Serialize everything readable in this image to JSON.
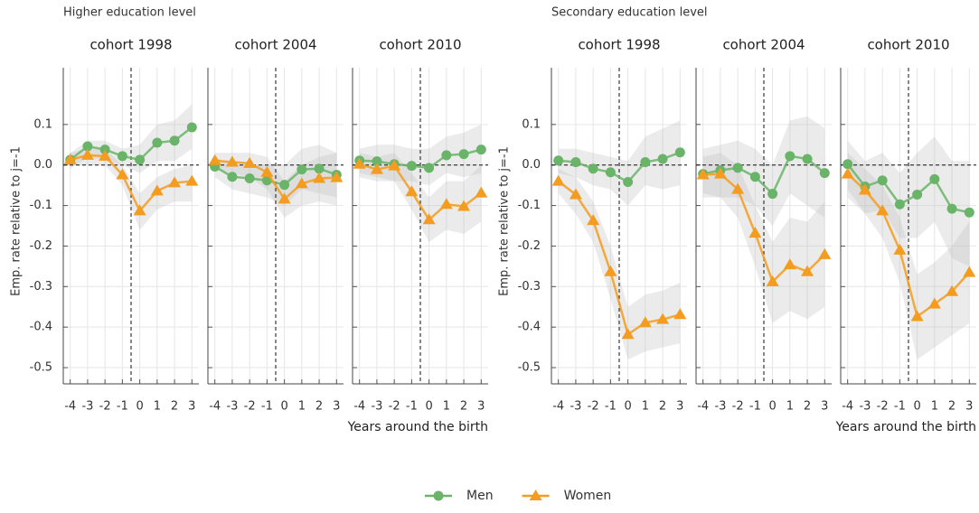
{
  "group_titles": [
    "Higher education level",
    "Secondary education level"
  ],
  "legend": "bottom",
  "chart_data": [
    {
      "type": "line",
      "title": "cohort 1998",
      "y_label": "Emp. rate relative to j=-1",
      "x": [
        -4,
        -3,
        -2,
        -1,
        0,
        1,
        2,
        3
      ],
      "xlim": [
        -4.4,
        3.4
      ],
      "xticks": [
        -4,
        -3,
        -2,
        -1,
        0,
        1,
        2,
        3
      ],
      "ylim": [
        -0.54,
        0.24
      ],
      "yticks": [
        0.1,
        {
          "value": 0,
          "label": "0.0"
        },
        -0.1,
        -0.2,
        -0.3,
        -0.4,
        -0.5
      ],
      "grid": true,
      "reference_lines": {
        "x": -0.5,
        "y": 0
      },
      "series": [
        {
          "name": "Men",
          "color": "#6ab46a",
          "marker": "circle",
          "values": [
            0.013,
            0.046,
            0.038,
            0.022,
            0.013,
            0.055,
            0.06,
            0.093
          ],
          "ci_lower": [
            -0.01,
            0.02,
            0.01,
            0.0,
            -0.02,
            0.01,
            0.01,
            0.04
          ],
          "ci_upper": [
            0.03,
            0.06,
            0.06,
            0.04,
            0.05,
            0.1,
            0.11,
            0.15
          ]
        },
        {
          "name": "Women",
          "color": "#f39c1f",
          "marker": "triangle",
          "values": [
            0.013,
            0.024,
            0.022,
            -0.024,
            -0.113,
            -0.064,
            -0.044,
            -0.04
          ],
          "ci_lower": [
            0.0,
            0.0,
            0.0,
            -0.05,
            -0.16,
            -0.11,
            -0.09,
            -0.09
          ],
          "ci_upper": [
            0.03,
            0.04,
            0.04,
            0.0,
            -0.07,
            -0.03,
            -0.01,
            0.0
          ]
        }
      ]
    },
    {
      "type": "line",
      "title": "cohort 2004",
      "x": [
        -4,
        -3,
        -2,
        -1,
        0,
        1,
        2,
        3
      ],
      "xlim": [
        -4.4,
        3.4
      ],
      "xticks": [
        -4,
        -3,
        -2,
        -1,
        0,
        1,
        2,
        3
      ],
      "ylim": [
        -0.54,
        0.24
      ],
      "yticks": [
        0.1,
        0,
        -0.1,
        -0.2,
        -0.3,
        -0.4,
        -0.5
      ],
      "grid": true,
      "reference_lines": {
        "x": -0.5,
        "y": 0
      },
      "series": [
        {
          "name": "Men",
          "color": "#6ab46a",
          "marker": "circle",
          "values": [
            -0.004,
            -0.029,
            -0.033,
            -0.038,
            -0.049,
            -0.011,
            -0.009,
            -0.024
          ],
          "ci_lower": [
            -0.03,
            -0.06,
            -0.07,
            -0.08,
            -0.1,
            -0.06,
            -0.07,
            -0.08
          ],
          "ci_upper": [
            0.02,
            0.0,
            0.0,
            0.0,
            0.0,
            0.04,
            0.05,
            0.03
          ]
        },
        {
          "name": "Women",
          "color": "#f39c1f",
          "marker": "triangle",
          "values": [
            0.011,
            0.007,
            0.004,
            -0.018,
            -0.084,
            -0.046,
            -0.033,
            -0.031
          ],
          "ci_lower": [
            -0.01,
            -0.02,
            -0.03,
            -0.06,
            -0.13,
            -0.1,
            -0.09,
            -0.1
          ],
          "ci_upper": [
            0.03,
            0.03,
            0.03,
            0.02,
            -0.04,
            0.0,
            0.02,
            0.03
          ]
        }
      ]
    },
    {
      "type": "line",
      "title": "cohort 2010",
      "x_label": "Years around the birth",
      "x": [
        -4,
        -3,
        -2,
        -1,
        0,
        1,
        2,
        3
      ],
      "xlim": [
        -4.4,
        3.4
      ],
      "xticks": [
        -4,
        -3,
        -2,
        -1,
        0,
        1,
        2,
        3
      ],
      "ylim": [
        -0.54,
        0.24
      ],
      "yticks": [
        0.1,
        0,
        -0.1,
        -0.2,
        -0.3,
        -0.4,
        -0.5
      ],
      "grid": true,
      "reference_lines": {
        "x": -0.5,
        "y": 0
      },
      "series": [
        {
          "name": "Men",
          "color": "#6ab46a",
          "marker": "circle",
          "values": [
            0.011,
            0.009,
            0.002,
            -0.002,
            -0.007,
            0.024,
            0.027,
            0.038
          ],
          "ci_lower": [
            -0.02,
            -0.03,
            -0.04,
            -0.04,
            -0.05,
            -0.02,
            -0.03,
            -0.02
          ],
          "ci_upper": [
            0.04,
            0.05,
            0.05,
            0.04,
            0.04,
            0.07,
            0.08,
            0.1
          ]
        },
        {
          "name": "Women",
          "color": "#f39c1f",
          "marker": "triangle",
          "values": [
            0.002,
            -0.011,
            -0.002,
            -0.066,
            -0.135,
            -0.097,
            -0.102,
            -0.069
          ],
          "ci_lower": [
            -0.03,
            -0.04,
            -0.04,
            -0.11,
            -0.19,
            -0.16,
            -0.17,
            -0.14
          ],
          "ci_upper": [
            0.03,
            0.02,
            0.03,
            -0.02,
            -0.08,
            -0.04,
            -0.04,
            0.0
          ]
        }
      ]
    },
    {
      "type": "line",
      "title": "cohort 1998",
      "y_label": "Emp. rate relative to j=-1",
      "x": [
        -4,
        -3,
        -2,
        -1,
        0,
        1,
        2,
        3
      ],
      "xlim": [
        -4.4,
        3.4
      ],
      "xticks": [
        -4,
        -3,
        -2,
        -1,
        0,
        1,
        2,
        3
      ],
      "ylim": [
        -0.54,
        0.24
      ],
      "yticks": [
        0.1,
        {
          "value": 0,
          "label": "0.0"
        },
        -0.1,
        -0.2,
        -0.3,
        -0.4,
        -0.5
      ],
      "grid": true,
      "reference_lines": {
        "x": -0.5,
        "y": 0
      },
      "series": [
        {
          "name": "Men",
          "color": "#6ab46a",
          "marker": "circle",
          "values": [
            0.011,
            0.007,
            -0.009,
            -0.018,
            -0.042,
            0.007,
            0.015,
            0.031
          ],
          "ci_lower": [
            -0.02,
            -0.03,
            -0.05,
            -0.06,
            -0.1,
            -0.05,
            -0.06,
            -0.05
          ],
          "ci_upper": [
            0.04,
            0.04,
            0.03,
            0.02,
            0.01,
            0.07,
            0.09,
            0.11
          ]
        },
        {
          "name": "Women",
          "color": "#f39c1f",
          "marker": "triangle",
          "values": [
            -0.04,
            -0.073,
            -0.137,
            -0.263,
            -0.418,
            -0.389,
            -0.381,
            -0.369
          ],
          "ci_lower": [
            -0.07,
            -0.12,
            -0.19,
            -0.33,
            -0.48,
            -0.46,
            -0.45,
            -0.44
          ],
          "ci_upper": [
            -0.01,
            -0.03,
            -0.09,
            -0.2,
            -0.35,
            -0.32,
            -0.31,
            -0.29
          ]
        }
      ]
    },
    {
      "type": "line",
      "title": "cohort 2004",
      "x": [
        -4,
        -3,
        -2,
        -1,
        0,
        1,
        2,
        3
      ],
      "xlim": [
        -4.4,
        3.4
      ],
      "xticks": [
        -4,
        -3,
        -2,
        -1,
        0,
        1,
        2,
        3
      ],
      "ylim": [
        -0.54,
        0.24
      ],
      "yticks": [
        0.1,
        0,
        -0.1,
        -0.2,
        -0.3,
        -0.4,
        -0.5
      ],
      "grid": true,
      "reference_lines": {
        "x": -0.5,
        "y": 0
      },
      "series": [
        {
          "name": "Men",
          "color": "#6ab46a",
          "marker": "circle",
          "values": [
            -0.022,
            -0.013,
            -0.007,
            -0.029,
            -0.071,
            0.022,
            0.015,
            -0.02
          ],
          "ci_lower": [
            -0.08,
            -0.08,
            -0.08,
            -0.1,
            -0.15,
            -0.07,
            -0.1,
            -0.13
          ],
          "ci_upper": [
            0.04,
            0.05,
            0.06,
            0.04,
            0.0,
            0.11,
            0.12,
            0.09
          ]
        },
        {
          "name": "Women",
          "color": "#f39c1f",
          "marker": "triangle",
          "values": [
            -0.024,
            -0.022,
            -0.06,
            -0.168,
            -0.288,
            -0.246,
            -0.263,
            -0.221
          ],
          "ci_lower": [
            -0.07,
            -0.08,
            -0.13,
            -0.25,
            -0.39,
            -0.36,
            -0.38,
            -0.35
          ],
          "ci_upper": [
            0.02,
            0.03,
            0.0,
            -0.1,
            -0.19,
            -0.13,
            -0.14,
            -0.09
          ]
        }
      ]
    },
    {
      "type": "line",
      "title": "cohort 2010",
      "x_label": "Years around the birth",
      "x": [
        -4,
        -3,
        -2,
        -1,
        0,
        1,
        2,
        3
      ],
      "xlim": [
        -4.4,
        3.4
      ],
      "xticks": [
        -4,
        -3,
        -2,
        -1,
        0,
        1,
        2,
        3
      ],
      "ylim": [
        -0.54,
        0.24
      ],
      "yticks": [
        0.1,
        0,
        -0.1,
        -0.2,
        -0.3,
        -0.4,
        -0.5
      ],
      "grid": true,
      "reference_lines": {
        "x": -0.5,
        "y": 0
      },
      "series": [
        {
          "name": "Men",
          "color": "#6ab46a",
          "marker": "circle",
          "values": [
            0.002,
            -0.053,
            -0.038,
            -0.097,
            -0.073,
            -0.035,
            -0.108,
            -0.117
          ],
          "ci_lower": [
            -0.06,
            -0.12,
            -0.11,
            -0.18,
            -0.18,
            -0.14,
            -0.23,
            -0.25
          ],
          "ci_upper": [
            0.06,
            0.01,
            0.03,
            -0.02,
            0.03,
            0.07,
            0.01,
            0.01
          ]
        },
        {
          "name": "Women",
          "color": "#f39c1f",
          "marker": "triangle",
          "values": [
            -0.022,
            -0.062,
            -0.113,
            -0.21,
            -0.374,
            -0.343,
            -0.312,
            -0.265
          ],
          "ci_lower": [
            -0.08,
            -0.12,
            -0.18,
            -0.29,
            -0.48,
            -0.45,
            -0.42,
            -0.39
          ],
          "ci_upper": [
            0.03,
            -0.01,
            -0.05,
            -0.13,
            -0.27,
            -0.24,
            -0.2,
            -0.14
          ]
        }
      ]
    }
  ]
}
